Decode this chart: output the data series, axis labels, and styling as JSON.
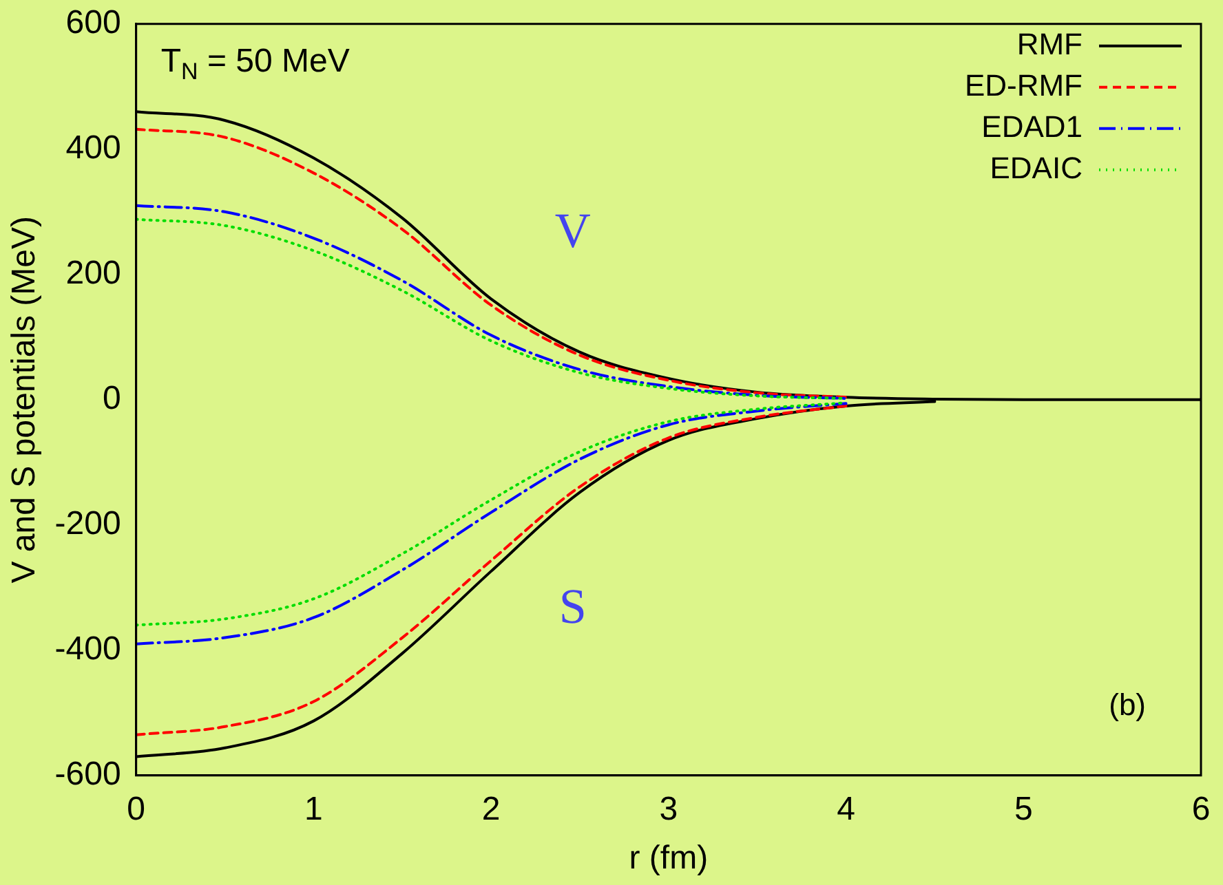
{
  "chart_data": {
    "type": "line",
    "xlabel": "r (fm)",
    "ylabel": "V and S potentials (MeV)",
    "x": [
      0,
      0.5,
      1,
      1.5,
      2,
      2.5,
      3,
      3.5,
      4,
      4.5,
      5,
      5.5,
      6
    ],
    "xlim": [
      0,
      6
    ],
    "xticks": [
      0,
      1,
      2,
      3,
      4,
      5,
      6
    ],
    "ylim": [
      -600,
      600
    ],
    "yticks": [
      -600,
      -400,
      -200,
      0,
      200,
      400,
      600
    ],
    "grid": false,
    "legend": "top right",
    "marker": "none",
    "annotations": [
      "T$_{N}$ = 50 MeV",
      "V",
      "S",
      "(b)"
    ],
    "series": [
      {
        "name": "RMF",
        "color": "#000000",
        "line_style": "solid",
        "values": [
          460,
          446,
          386,
          290,
          161,
          76,
          34,
          12,
          4,
          1,
          0,
          0,
          0
        ]
      },
      {
        "name": "ED-RMF",
        "color": "#ff0000",
        "line_style": "dashed",
        "values": [
          432,
          419,
          362,
          272,
          151,
          71,
          31,
          11,
          4,
          null,
          null,
          null,
          null
        ]
      },
      {
        "name": "EDAD1",
        "color": "#0000ff",
        "line_style": "dashdot",
        "values": [
          310,
          300,
          258,
          190,
          103,
          48,
          21,
          7,
          2,
          null,
          null,
          null,
          null
        ]
      },
      {
        "name": "EDAIC",
        "color": "#00dd00",
        "line_style": "dotted",
        "values": [
          288,
          278,
          238,
          174,
          94,
          43,
          18,
          6,
          2,
          null,
          null,
          null,
          null
        ]
      },
      {
        "color": "#000000",
        "line_style": "solid",
        "values": [
          -570,
          -556,
          -513,
          -405,
          -274,
          -148,
          -65,
          -30,
          -10,
          -3,
          null,
          null,
          null
        ]
      },
      {
        "color": "#ff0000",
        "line_style": "dashed",
        "values": [
          -535,
          -522,
          -482,
          -380,
          -257,
          -139,
          -61,
          -28,
          -10,
          null,
          null,
          null,
          null
        ]
      },
      {
        "color": "#0000ff",
        "line_style": "dashdot",
        "values": [
          -390,
          -380,
          -348,
          -272,
          -180,
          -95,
          -40,
          -18,
          -6,
          null,
          null,
          null,
          null
        ]
      },
      {
        "color": "#00dd00",
        "line_style": "dotted",
        "values": [
          -360,
          -350,
          -318,
          -246,
          -160,
          -83,
          -35,
          -15,
          -5,
          null,
          null,
          null,
          null
        ]
      }
    ]
  }
}
